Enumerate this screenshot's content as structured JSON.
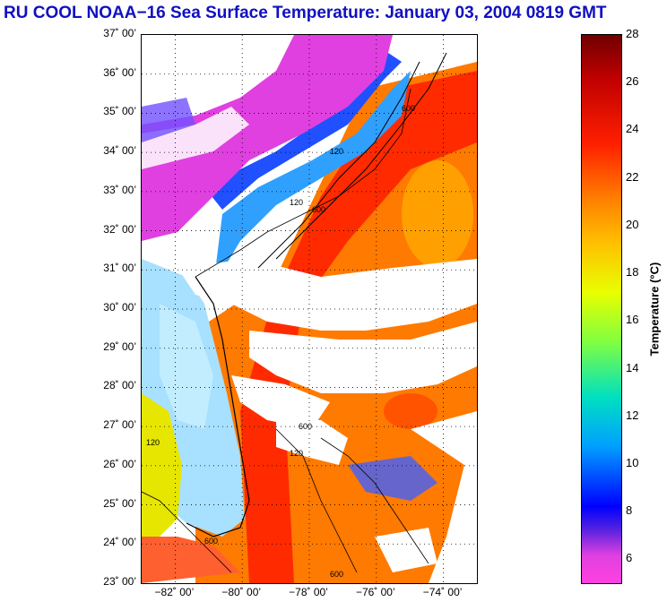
{
  "title": "RU COOL  NOAA−16  Sea Surface Temperature:  January 03, 2004 0819 GMT",
  "map": {
    "lat_range": [
      23,
      37
    ],
    "lon_range": [
      -83,
      -73
    ],
    "lat_ticks": [
      "37˚ 00’",
      "36˚ 00’",
      "35˚ 00’",
      "34˚ 00’",
      "33˚ 00’",
      "32˚ 00’",
      "31˚ 00’",
      "30˚ 00’",
      "29˚ 00’",
      "28˚ 00’",
      "27˚ 00’",
      "26˚ 00’",
      "25˚ 00’",
      "24˚ 00’",
      "23˚ 00’"
    ],
    "lon_ticks": [
      "−82˚ 00’",
      "−80˚ 00’",
      "−78˚ 00’",
      "−76˚ 00’",
      "−74˚ 00’"
    ],
    "isobath_labels": [
      "120",
      "600"
    ],
    "grid": "dotted"
  },
  "colorbar": {
    "label": "Temperature (°C)",
    "ticks": [
      "28",
      "26",
      "24",
      "22",
      "20",
      "18",
      "16",
      "14",
      "12",
      "10",
      "8",
      "6"
    ],
    "range": [
      5,
      28
    ]
  },
  "colors": {
    "title": "#1010c0",
    "cloud": "#ffffff",
    "land_cold": "#e040e0",
    "shelf_cold": "#2060ff",
    "shelf_mid": "#40c0ff",
    "gulf_stream": "#ff3000",
    "warm": "#ff7a00",
    "florida_shelf": "#a8e0ff",
    "gulf_warm": "#e6e600"
  }
}
